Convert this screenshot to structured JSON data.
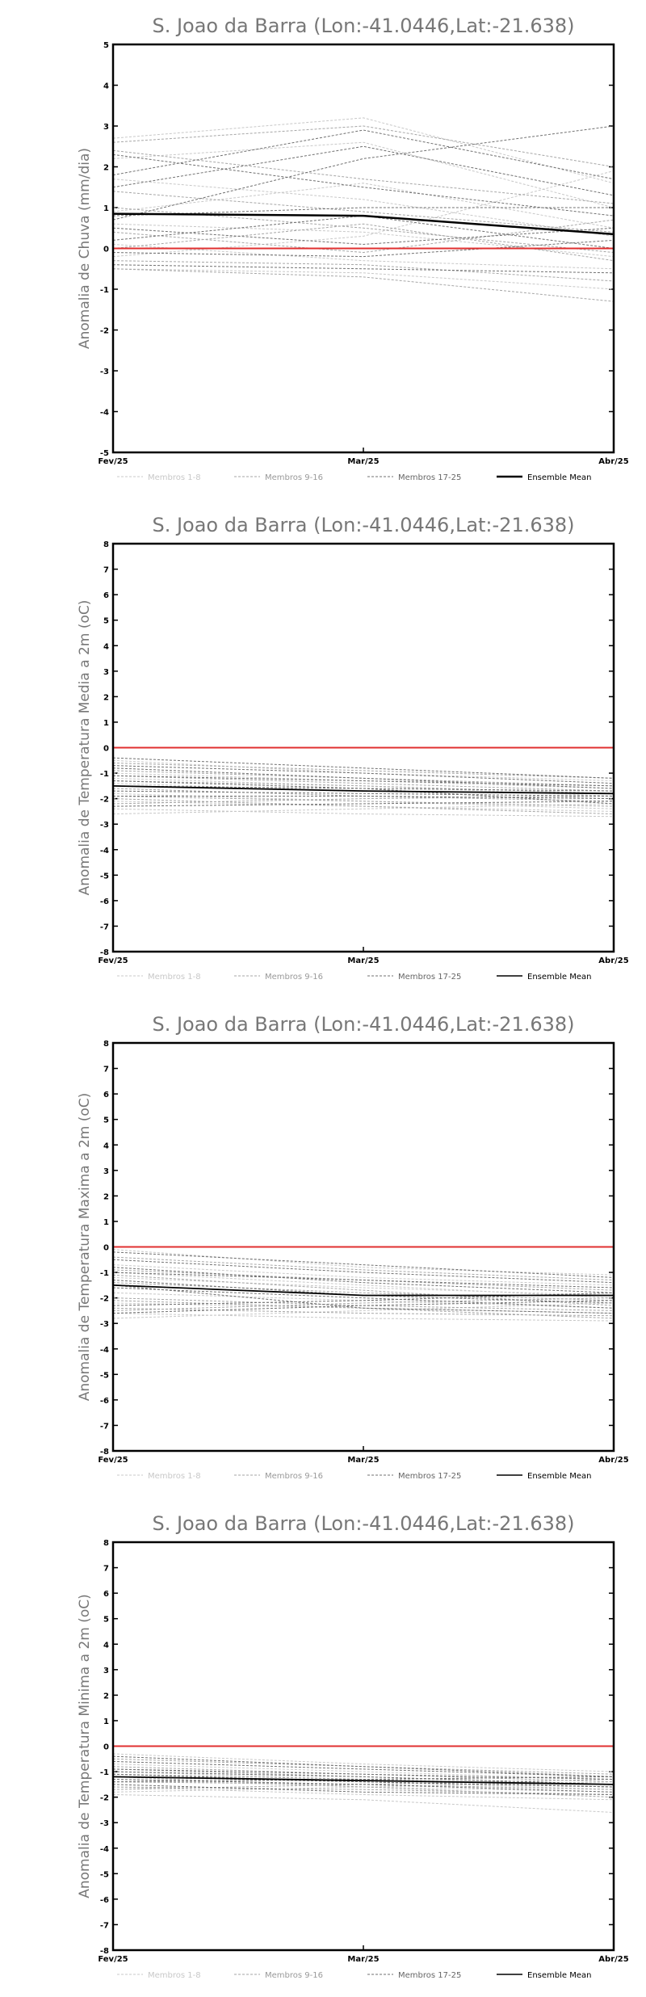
{
  "chart_data": [
    {
      "type": "line",
      "title": "S. Joao da Barra (Lon:-41.0446,Lat:-21.638)",
      "ylabel": "Anomalia de Chuva (mm/dia)",
      "x": [
        "Fev/25",
        "Mar/25",
        "Abr/25"
      ],
      "ylim": [
        -5,
        5
      ],
      "yticks": [
        -5,
        -4,
        -3,
        -2,
        -1,
        0,
        1,
        2,
        3,
        4,
        5
      ],
      "reference_line": 0,
      "legend": [
        "Membros 1-8",
        "Membros 9-16",
        "Membros 17-25",
        "Ensemble Mean"
      ],
      "series": [
        {
          "group": 1,
          "values": [
            2.7,
            3.2,
            1.6
          ]
        },
        {
          "group": 1,
          "values": [
            2.2,
            2.6,
            1.0
          ]
        },
        {
          "group": 1,
          "values": [
            1.7,
            1.2,
            0.3
          ]
        },
        {
          "group": 1,
          "values": [
            0.9,
            1.6,
            0.5
          ]
        },
        {
          "group": 1,
          "values": [
            0.6,
            0.4,
            -0.2
          ]
        },
        {
          "group": 1,
          "values": [
            0.1,
            -0.3,
            -0.5
          ]
        },
        {
          "group": 1,
          "values": [
            -0.2,
            0.3,
            1.9
          ]
        },
        {
          "group": 1,
          "values": [
            -0.5,
            -0.6,
            -1.0
          ]
        },
        {
          "group": 2,
          "values": [
            2.6,
            3.0,
            2.0
          ]
        },
        {
          "group": 2,
          "values": [
            2.4,
            1.7,
            1.1
          ]
        },
        {
          "group": 2,
          "values": [
            1.4,
            0.9,
            0.4
          ]
        },
        {
          "group": 2,
          "values": [
            1.0,
            0.5,
            -0.1
          ]
        },
        {
          "group": 2,
          "values": [
            0.4,
            -0.1,
            0.7
          ]
        },
        {
          "group": 2,
          "values": [
            0.0,
            0.6,
            -0.3
          ]
        },
        {
          "group": 2,
          "values": [
            -0.3,
            -0.4,
            -0.8
          ]
        },
        {
          "group": 2,
          "values": [
            -0.5,
            -0.7,
            -1.3
          ]
        },
        {
          "group": 3,
          "values": [
            2.3,
            1.5,
            0.8
          ]
        },
        {
          "group": 3,
          "values": [
            1.8,
            2.9,
            1.7
          ]
        },
        {
          "group": 3,
          "values": [
            1.5,
            2.5,
            1.3
          ]
        },
        {
          "group": 3,
          "values": [
            0.7,
            2.2,
            3.0
          ]
        },
        {
          "group": 3,
          "values": [
            0.5,
            0.1,
            0.5
          ]
        },
        {
          "group": 3,
          "values": [
            0.2,
            0.8,
            0.0
          ]
        },
        {
          "group": 3,
          "values": [
            -0.1,
            -0.2,
            0.2
          ]
        },
        {
          "group": 3,
          "values": [
            -0.4,
            -0.5,
            -0.6
          ]
        },
        {
          "group": 3,
          "values": [
            0.8,
            1.0,
            1.0
          ]
        }
      ],
      "mean": [
        0.85,
        0.8,
        0.35
      ]
    },
    {
      "type": "line",
      "title": "S. Joao da Barra (Lon:-41.0446,Lat:-21.638)",
      "ylabel": "Anomalia de Temperatura Media a 2m (oC)",
      "x": [
        "Fev/25",
        "Mar/25",
        "Abr/25"
      ],
      "ylim": [
        -8,
        8
      ],
      "yticks": [
        -8,
        -7,
        -6,
        -5,
        -4,
        -3,
        -2,
        -1,
        0,
        1,
        2,
        3,
        4,
        5,
        6,
        7,
        8
      ],
      "reference_line": 0,
      "legend": [
        "Membros 1-8",
        "Membros 9-16",
        "Membros 17-25",
        "Ensemble Mean"
      ],
      "series": [
        {
          "group": 1,
          "values": [
            -0.5,
            -1.0,
            -1.3
          ]
        },
        {
          "group": 1,
          "values": [
            -1.0,
            -1.3,
            -1.6
          ]
        },
        {
          "group": 1,
          "values": [
            -1.4,
            -1.7,
            -2.0
          ]
        },
        {
          "group": 1,
          "values": [
            -1.8,
            -2.1,
            -2.4
          ]
        },
        {
          "group": 1,
          "values": [
            -2.1,
            -2.3,
            -2.5
          ]
        },
        {
          "group": 1,
          "values": [
            -2.4,
            -2.6,
            -2.7
          ]
        },
        {
          "group": 1,
          "values": [
            -2.6,
            -2.4,
            -2.2
          ]
        },
        {
          "group": 1,
          "values": [
            -1.2,
            -1.5,
            -1.9
          ]
        },
        {
          "group": 2,
          "values": [
            -0.6,
            -0.9,
            -1.2
          ]
        },
        {
          "group": 2,
          "values": [
            -0.9,
            -1.2,
            -1.5
          ]
        },
        {
          "group": 2,
          "values": [
            -1.3,
            -1.5,
            -1.8
          ]
        },
        {
          "group": 2,
          "values": [
            -1.6,
            -1.9,
            -2.1
          ]
        },
        {
          "group": 2,
          "values": [
            -1.9,
            -2.1,
            -2.3
          ]
        },
        {
          "group": 2,
          "values": [
            -2.2,
            -2.0,
            -1.9
          ]
        },
        {
          "group": 2,
          "values": [
            -2.0,
            -2.3,
            -2.6
          ]
        },
        {
          "group": 2,
          "values": [
            -1.1,
            -1.4,
            -1.7
          ]
        },
        {
          "group": 3,
          "values": [
            -0.4,
            -0.8,
            -1.2
          ]
        },
        {
          "group": 3,
          "values": [
            -0.7,
            -1.0,
            -1.4
          ]
        },
        {
          "group": 3,
          "values": [
            -0.8,
            -1.2,
            -1.6
          ]
        },
        {
          "group": 3,
          "values": [
            -1.1,
            -1.3,
            -1.5
          ]
        },
        {
          "group": 3,
          "values": [
            -1.5,
            -1.6,
            -1.7
          ]
        },
        {
          "group": 3,
          "values": [
            -1.7,
            -1.8,
            -1.9
          ]
        },
        {
          "group": 3,
          "values": [
            -1.9,
            -1.9,
            -2.0
          ]
        },
        {
          "group": 3,
          "values": [
            -1.3,
            -1.6,
            -2.2
          ]
        },
        {
          "group": 3,
          "values": [
            -2.3,
            -2.2,
            -2.1
          ]
        }
      ],
      "mean": [
        -1.5,
        -1.7,
        -1.8
      ]
    },
    {
      "type": "line",
      "title": "S. Joao da Barra (Lon:-41.0446,Lat:-21.638)",
      "ylabel": "Anomalia de Temperatura Maxima a 2m (oC)",
      "x": [
        "Fev/25",
        "Mar/25",
        "Abr/25"
      ],
      "ylim": [
        -8,
        8
      ],
      "yticks": [
        -8,
        -7,
        -6,
        -5,
        -4,
        -3,
        -2,
        -1,
        0,
        1,
        2,
        3,
        4,
        5,
        6,
        7,
        8
      ],
      "reference_line": 0,
      "legend": [
        "Membros 1-8",
        "Membros 9-16",
        "Membros 17-25",
        "Ensemble Mean"
      ],
      "series": [
        {
          "group": 1,
          "values": [
            -0.1,
            -0.8,
            -1.1
          ]
        },
        {
          "group": 1,
          "values": [
            -0.7,
            -1.2,
            -1.5
          ]
        },
        {
          "group": 1,
          "values": [
            -1.2,
            -1.6,
            -1.9
          ]
        },
        {
          "group": 1,
          "values": [
            -1.8,
            -2.1,
            -2.4
          ]
        },
        {
          "group": 1,
          "values": [
            -2.2,
            -2.4,
            -2.6
          ]
        },
        {
          "group": 1,
          "values": [
            -2.6,
            -2.8,
            -2.9
          ]
        },
        {
          "group": 1,
          "values": [
            -2.8,
            -2.5,
            -2.2
          ]
        },
        {
          "group": 1,
          "values": [
            -1.0,
            -1.5,
            -2.0
          ]
        },
        {
          "group": 2,
          "values": [
            -0.4,
            -0.9,
            -1.3
          ]
        },
        {
          "group": 2,
          "values": [
            -0.9,
            -1.3,
            -1.7
          ]
        },
        {
          "group": 2,
          "values": [
            -1.4,
            -1.8,
            -2.1
          ]
        },
        {
          "group": 2,
          "values": [
            -2.0,
            -2.3,
            -2.5
          ]
        },
        {
          "group": 2,
          "values": [
            -2.4,
            -2.6,
            -2.7
          ]
        },
        {
          "group": 2,
          "values": [
            -2.5,
            -2.2,
            -2.0
          ]
        },
        {
          "group": 2,
          "values": [
            -2.1,
            -2.4,
            -2.8
          ]
        },
        {
          "group": 2,
          "values": [
            -1.1,
            -1.7,
            -2.3
          ]
        },
        {
          "group": 3,
          "values": [
            -0.2,
            -0.7,
            -1.2
          ]
        },
        {
          "group": 3,
          "values": [
            -0.5,
            -1.0,
            -1.4
          ]
        },
        {
          "group": 3,
          "values": [
            -0.8,
            -1.4,
            -1.8
          ]
        },
        {
          "group": 3,
          "values": [
            -1.0,
            -1.3,
            -1.6
          ]
        },
        {
          "group": 3,
          "values": [
            -1.3,
            -1.9,
            -2.2
          ]
        },
        {
          "group": 3,
          "values": [
            -1.6,
            -2.0,
            -2.4
          ]
        },
        {
          "group": 3,
          "values": [
            -2.3,
            -2.1,
            -1.8
          ]
        },
        {
          "group": 3,
          "values": [
            -1.5,
            -2.4,
            -2.6
          ]
        },
        {
          "group": 3,
          "values": [
            -2.6,
            -2.3,
            -2.1
          ]
        }
      ],
      "mean": [
        -1.5,
        -1.9,
        -1.9
      ]
    },
    {
      "type": "line",
      "title": "S. Joao da Barra (Lon:-41.0446,Lat:-21.638)",
      "ylabel": "Anomalia de Temperatura Minima a 2m (oC)",
      "x": [
        "Fev/25",
        "Mar/25",
        "Abr/25"
      ],
      "ylim": [
        -8,
        8
      ],
      "yticks": [
        -8,
        -7,
        -6,
        -5,
        -4,
        -3,
        -2,
        -1,
        0,
        1,
        2,
        3,
        4,
        5,
        6,
        7,
        8
      ],
      "reference_line": 0,
      "legend": [
        "Membros 1-8",
        "Membros 9-16",
        "Membros 17-25",
        "Ensemble Mean"
      ],
      "series": [
        {
          "group": 1,
          "values": [
            -0.3,
            -0.7,
            -1.0
          ]
        },
        {
          "group": 1,
          "values": [
            -0.7,
            -1.0,
            -1.3
          ]
        },
        {
          "group": 1,
          "values": [
            -1.0,
            -1.3,
            -1.5
          ]
        },
        {
          "group": 1,
          "values": [
            -1.3,
            -1.6,
            -1.8
          ]
        },
        {
          "group": 1,
          "values": [
            -1.6,
            -1.9,
            -2.1
          ]
        },
        {
          "group": 1,
          "values": [
            -1.9,
            -2.1,
            -2.6
          ]
        },
        {
          "group": 1,
          "values": [
            -1.8,
            -1.6,
            -1.4
          ]
        },
        {
          "group": 1,
          "values": [
            -1.1,
            -1.4,
            -1.7
          ]
        },
        {
          "group": 2,
          "values": [
            -0.5,
            -0.8,
            -1.1
          ]
        },
        {
          "group": 2,
          "values": [
            -0.8,
            -1.1,
            -1.4
          ]
        },
        {
          "group": 2,
          "values": [
            -1.1,
            -1.3,
            -1.6
          ]
        },
        {
          "group": 2,
          "values": [
            -1.4,
            -1.5,
            -1.7
          ]
        },
        {
          "group": 2,
          "values": [
            -1.6,
            -1.7,
            -1.9
          ]
        },
        {
          "group": 2,
          "values": [
            -1.7,
            -1.5,
            -1.3
          ]
        },
        {
          "group": 2,
          "values": [
            -1.2,
            -1.6,
            -2.0
          ]
        },
        {
          "group": 2,
          "values": [
            -0.9,
            -1.2,
            -1.5
          ]
        },
        {
          "group": 3,
          "values": [
            -0.4,
            -0.8,
            -1.2
          ]
        },
        {
          "group": 3,
          "values": [
            -0.6,
            -0.9,
            -1.2
          ]
        },
        {
          "group": 3,
          "values": [
            -0.9,
            -1.1,
            -1.3
          ]
        },
        {
          "group": 3,
          "values": [
            -1.0,
            -1.2,
            -1.5
          ]
        },
        {
          "group": 3,
          "values": [
            -1.2,
            -1.4,
            -1.6
          ]
        },
        {
          "group": 3,
          "values": [
            -1.4,
            -1.3,
            -1.2
          ]
        },
        {
          "group": 3,
          "values": [
            -1.5,
            -1.8,
            -1.9
          ]
        },
        {
          "group": 3,
          "values": [
            -1.3,
            -1.5,
            -1.8
          ]
        },
        {
          "group": 3,
          "values": [
            -1.1,
            -1.4,
            -1.6
          ]
        }
      ],
      "mean": [
        -1.2,
        -1.35,
        -1.5
      ]
    }
  ],
  "colors": {
    "membros_1_8": "#c8c8c8",
    "membros_9_16": "#a6a6a6",
    "membros_17_25": "#707070",
    "ensemble_mean": "#000000",
    "reference_line": "#e03030",
    "title_text": "#777777"
  }
}
